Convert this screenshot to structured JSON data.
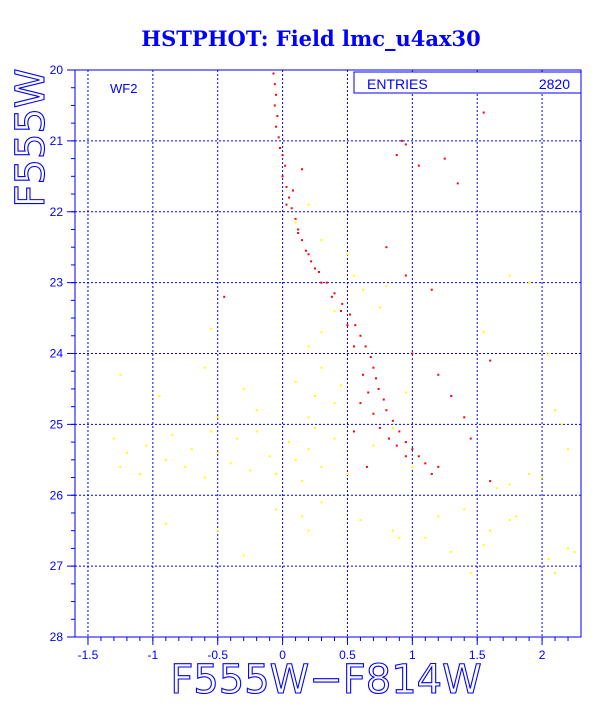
{
  "chart_data": {
    "type": "scatter",
    "title": "HSTPHOT: Field lmc_u4ax30",
    "xlabel": "F555W−F814W",
    "ylabel": "F555W",
    "xlim": [
      -1.6,
      2.3
    ],
    "ylim": [
      28,
      20
    ],
    "y_inverted": true,
    "x_ticks": [
      -1.5,
      -1,
      -0.5,
      0,
      0.5,
      1,
      1.5,
      2
    ],
    "x_tick_labels": [
      "-1.5",
      "-1",
      "-0.5",
      "0",
      "0.5",
      "1",
      "1.5",
      "2"
    ],
    "y_ticks": [
      20,
      21,
      22,
      23,
      24,
      25,
      26,
      27,
      28
    ],
    "y_tick_labels": [
      "20",
      "21",
      "22",
      "23",
      "24",
      "25",
      "26",
      "27",
      "28"
    ],
    "grid": true,
    "panel_label": "WF2",
    "stats_box": {
      "label": "ENTRIES",
      "value": "2820",
      "position": "top-right"
    },
    "series": [
      {
        "color": "#ff0000",
        "points": [
          [
            -0.07,
            20.05
          ],
          [
            -0.06,
            20.2
          ],
          [
            -0.05,
            20.35
          ],
          [
            -0.06,
            20.5
          ],
          [
            -0.04,
            20.65
          ],
          [
            -0.05,
            20.8
          ],
          [
            -0.03,
            20.95
          ],
          [
            -0.02,
            21.1
          ],
          [
            0.0,
            21.2
          ],
          [
            0.02,
            21.35
          ],
          [
            0.0,
            21.5
          ],
          [
            0.03,
            21.65
          ],
          [
            0.05,
            21.8
          ],
          [
            0.07,
            21.95
          ],
          [
            0.1,
            22.1
          ],
          [
            0.12,
            22.25
          ],
          [
            0.15,
            22.4
          ],
          [
            0.18,
            22.55
          ],
          [
            0.22,
            22.7
          ],
          [
            0.28,
            22.85
          ],
          [
            0.34,
            23.0
          ],
          [
            0.4,
            23.15
          ],
          [
            0.46,
            23.3
          ],
          [
            0.52,
            23.45
          ],
          [
            0.56,
            23.6
          ],
          [
            0.6,
            23.75
          ],
          [
            0.64,
            23.9
          ],
          [
            0.68,
            24.05
          ],
          [
            0.7,
            24.2
          ],
          [
            0.72,
            24.35
          ],
          [
            0.74,
            24.5
          ],
          [
            0.78,
            24.65
          ],
          [
            0.8,
            24.8
          ],
          [
            0.85,
            24.95
          ],
          [
            0.9,
            25.1
          ],
          [
            0.95,
            25.25
          ],
          [
            1.0,
            25.35
          ],
          [
            1.05,
            25.45
          ],
          [
            1.1,
            25.55
          ],
          [
            1.2,
            25.6
          ],
          [
            0.62,
            24.3
          ],
          [
            0.66,
            24.55
          ],
          [
            0.7,
            24.85
          ],
          [
            0.75,
            25.05
          ],
          [
            0.82,
            25.2
          ],
          [
            0.88,
            25.3
          ],
          [
            0.95,
            25.45
          ],
          [
            1.15,
            25.7
          ],
          [
            0.55,
            23.9
          ],
          [
            0.5,
            23.6
          ],
          [
            0.45,
            23.4
          ],
          [
            0.38,
            23.2
          ],
          [
            0.3,
            23.0
          ],
          [
            0.25,
            22.8
          ],
          [
            0.2,
            22.6
          ],
          [
            0.12,
            22.3
          ],
          [
            0.03,
            21.9
          ],
          [
            0.08,
            21.7
          ],
          [
            0.15,
            21.4
          ],
          [
            0.92,
            21.0
          ],
          [
            0.95,
            21.05
          ],
          [
            0.88,
            21.2
          ],
          [
            1.05,
            21.35
          ],
          [
            1.25,
            21.25
          ],
          [
            1.35,
            21.6
          ],
          [
            0.8,
            22.5
          ],
          [
            0.95,
            22.9
          ],
          [
            1.15,
            23.1
          ],
          [
            1.2,
            24.3
          ],
          [
            1.3,
            24.6
          ],
          [
            1.4,
            24.9
          ],
          [
            1.45,
            25.2
          ],
          [
            1.6,
            24.1
          ],
          [
            1.55,
            20.6
          ],
          [
            1.6,
            25.8
          ],
          [
            -0.45,
            23.2
          ],
          [
            1.0,
            24.0
          ],
          [
            0.65,
            25.6
          ],
          [
            0.55,
            25.1
          ],
          [
            0.6,
            24.7
          ]
        ]
      },
      {
        "color": "#ffff00",
        "points": [
          [
            -1.3,
            25.2
          ],
          [
            -1.25,
            25.6
          ],
          [
            -1.2,
            25.4
          ],
          [
            -1.1,
            25.7
          ],
          [
            -1.05,
            25.3
          ],
          [
            -0.9,
            25.5
          ],
          [
            -0.85,
            25.15
          ],
          [
            -0.75,
            25.6
          ],
          [
            -0.7,
            25.35
          ],
          [
            -0.6,
            25.75
          ],
          [
            -0.55,
            25.1
          ],
          [
            -0.5,
            25.4
          ],
          [
            -0.4,
            25.55
          ],
          [
            -0.35,
            25.2
          ],
          [
            -0.25,
            25.65
          ],
          [
            -0.2,
            25.1
          ],
          [
            -0.1,
            25.45
          ],
          [
            -0.05,
            25.7
          ],
          [
            0.05,
            25.25
          ],
          [
            0.1,
            25.5
          ],
          [
            0.15,
            25.8
          ],
          [
            0.2,
            25.35
          ],
          [
            0.25,
            25.05
          ],
          [
            0.3,
            25.6
          ],
          [
            -1.25,
            24.3
          ],
          [
            -0.95,
            24.6
          ],
          [
            -0.6,
            24.2
          ],
          [
            -0.5,
            24.9
          ],
          [
            -0.3,
            24.5
          ],
          [
            -0.2,
            24.8
          ],
          [
            0.1,
            24.4
          ],
          [
            0.2,
            24.9
          ],
          [
            0.25,
            24.6
          ],
          [
            0.3,
            24.2
          ],
          [
            0.4,
            24.7
          ],
          [
            0.45,
            24.45
          ],
          [
            -0.55,
            23.65
          ],
          [
            0.4,
            23.4
          ],
          [
            0.3,
            23.7
          ],
          [
            0.2,
            23.9
          ],
          [
            1.55,
            23.7
          ],
          [
            1.75,
            22.9
          ],
          [
            1.9,
            23.0
          ],
          [
            2.05,
            24.0
          ],
          [
            2.1,
            24.8
          ],
          [
            2.2,
            25.35
          ],
          [
            2.15,
            25.0
          ],
          [
            2.25,
            26.8
          ],
          [
            2.2,
            26.75
          ],
          [
            2.1,
            27.1
          ],
          [
            2.05,
            26.9
          ],
          [
            1.8,
            26.3
          ],
          [
            1.75,
            26.35
          ],
          [
            1.6,
            26.5
          ],
          [
            1.55,
            26.7
          ],
          [
            1.45,
            27.1
          ],
          [
            1.3,
            26.8
          ],
          [
            1.1,
            26.6
          ],
          [
            0.9,
            26.6
          ],
          [
            0.15,
            26.3
          ],
          [
            0.2,
            26.5
          ],
          [
            -0.3,
            26.85
          ],
          [
            -0.05,
            26.2
          ],
          [
            0.3,
            26.1
          ],
          [
            -0.9,
            26.4
          ],
          [
            -0.5,
            26.5
          ],
          [
            1.2,
            26.3
          ],
          [
            1.4,
            26.2
          ],
          [
            0.85,
            26.5
          ],
          [
            0.6,
            26.35
          ],
          [
            1.65,
            25.9
          ],
          [
            1.75,
            25.85
          ],
          [
            1.9,
            25.7
          ],
          [
            2.0,
            25.75
          ],
          [
            0.1,
            22.15
          ],
          [
            0.2,
            21.9
          ],
          [
            0.3,
            22.4
          ],
          [
            0.5,
            22.6
          ],
          [
            0.55,
            22.9
          ],
          [
            0.62,
            23.1
          ],
          [
            0.75,
            23.35
          ],
          [
            0.8,
            23.05
          ],
          [
            0.7,
            25.3
          ],
          [
            0.85,
            25.05
          ],
          [
            1.0,
            25.6
          ],
          [
            0.95,
            24.55
          ],
          [
            0.4,
            25.2
          ],
          [
            0.5,
            25.7
          ]
        ]
      }
    ]
  }
}
